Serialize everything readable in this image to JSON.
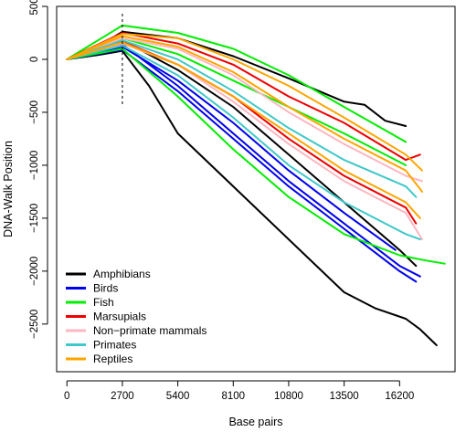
{
  "chart_data": {
    "type": "line",
    "xlabel": "Base pairs",
    "ylabel": "DNA-Walk Position",
    "xlim": [
      -500,
      18900
    ],
    "ylim": [
      -2950,
      500
    ],
    "x_ticks": [
      0,
      2700,
      5400,
      8100,
      10800,
      13500,
      16200
    ],
    "y_ticks": [
      500,
      0,
      -500,
      -1000,
      -1500,
      -2000,
      -2500
    ],
    "x_tick_labels": [
      "0",
      "2700",
      "5400",
      "8100",
      "10800",
      "13500",
      "16200"
    ],
    "y_tick_labels": [
      "500",
      "0",
      "−500",
      "−1000",
      "−1500",
      "−2000",
      "−2500"
    ],
    "vertical_marker_x": 2700,
    "grid": false,
    "legend_position": "bottom-left",
    "legend": [
      {
        "name": "Amphibians",
        "color": "#000000"
      },
      {
        "name": "Birds",
        "color": "#0000ee"
      },
      {
        "name": "Fish",
        "color": "#00ee00"
      },
      {
        "name": "Marsupials",
        "color": "#ee0000"
      },
      {
        "name": "Non−primate mammals",
        "color": "#ffb6c1"
      },
      {
        "name": "Primates",
        "color": "#40c8c8"
      },
      {
        "name": "Reptiles",
        "color": "#ffa500"
      }
    ],
    "series": [
      {
        "group": "Amphibians",
        "color": "#000000",
        "x": [
          0,
          1500,
          2700,
          5400,
          8100,
          10800,
          13500,
          14500,
          15500,
          16500
        ],
        "y": [
          0,
          120,
          260,
          200,
          30,
          -180,
          -400,
          -430,
          -580,
          -630
        ]
      },
      {
        "group": "Amphibians",
        "color": "#000000",
        "x": [
          0,
          1500,
          2700,
          4000,
          5400,
          8100,
          10800,
          13500,
          15000,
          16500,
          17200,
          18000
        ],
        "y": [
          0,
          40,
          80,
          -250,
          -700,
          -1200,
          -1700,
          -2200,
          -2350,
          -2450,
          -2550,
          -2700
        ]
      },
      {
        "group": "Amphibians",
        "color": "#000000",
        "x": [
          0,
          2700,
          5400,
          8100,
          10800,
          13500,
          16200,
          17000
        ],
        "y": [
          0,
          180,
          -100,
          -450,
          -900,
          -1350,
          -1800,
          -1950
        ]
      },
      {
        "group": "Birds",
        "color": "#0000ee",
        "x": [
          0,
          2700,
          5400,
          8100,
          10800,
          13500,
          16200,
          17200
        ],
        "y": [
          0,
          140,
          -250,
          -700,
          -1150,
          -1550,
          -1950,
          -2050
        ]
      },
      {
        "group": "Birds",
        "color": "#0000ee",
        "x": [
          0,
          2700,
          5400,
          8100,
          10800,
          13500,
          16200,
          17000
        ],
        "y": [
          0,
          90,
          -300,
          -750,
          -1200,
          -1600,
          -2000,
          -2100
        ]
      },
      {
        "group": "Birds",
        "color": "#0000ee",
        "x": [
          0,
          2700,
          5400,
          8100,
          10800,
          13500,
          16000
        ],
        "y": [
          0,
          120,
          -200,
          -600,
          -1050,
          -1450,
          -1800
        ]
      },
      {
        "group": "Fish",
        "color": "#00ee00",
        "x": [
          0,
          2700,
          5400,
          8100,
          10800,
          13500,
          16500
        ],
        "y": [
          0,
          320,
          250,
          100,
          -150,
          -450,
          -780
        ]
      },
      {
        "group": "Fish",
        "color": "#00ee00",
        "x": [
          0,
          2700,
          5400,
          8100,
          10800,
          13500,
          16200,
          17500,
          18400
        ],
        "y": [
          0,
          100,
          -350,
          -850,
          -1300,
          -1650,
          -1850,
          -1900,
          -1930
        ]
      },
      {
        "group": "Fish",
        "color": "#00ee00",
        "x": [
          0,
          2700,
          5400,
          8100,
          10800,
          13500,
          16500
        ],
        "y": [
          0,
          200,
          50,
          -200,
          -450,
          -700,
          -1000
        ]
      },
      {
        "group": "Marsupials",
        "color": "#ee0000",
        "x": [
          0,
          2700,
          5400,
          8100,
          10800,
          13500,
          16500,
          17200
        ],
        "y": [
          0,
          250,
          150,
          -50,
          -350,
          -600,
          -950,
          -900
        ]
      },
      {
        "group": "Marsupials",
        "color": "#ee0000",
        "x": [
          0,
          2700,
          5400,
          8100,
          10800,
          13500,
          16500,
          17000
        ],
        "y": [
          0,
          170,
          -50,
          -350,
          -750,
          -1100,
          -1400,
          -1550
        ]
      },
      {
        "group": "Non−primate mammals",
        "color": "#ffb6c1",
        "x": [
          0,
          2700,
          5400,
          8100,
          10800,
          13500,
          16500,
          17300
        ],
        "y": [
          0,
          200,
          100,
          -150,
          -500,
          -800,
          -1100,
          -1150
        ]
      },
      {
        "group": "Non−primate mammals",
        "color": "#ffb6c1",
        "x": [
          0,
          2700,
          5400,
          8100,
          10800,
          13500,
          16500,
          17300
        ],
        "y": [
          0,
          150,
          -50,
          -400,
          -800,
          -1150,
          -1450,
          -1700
        ]
      },
      {
        "group": "Primates",
        "color": "#40c8c8",
        "x": [
          0,
          2700,
          5400,
          8100,
          10800,
          13500,
          16500,
          17200
        ],
        "y": [
          0,
          130,
          -150,
          -550,
          -1000,
          -1350,
          -1650,
          -1700
        ]
      },
      {
        "group": "Primates",
        "color": "#40c8c8",
        "x": [
          0,
          2700,
          5400,
          8100,
          10800,
          13500,
          16500,
          17000
        ],
        "y": [
          0,
          180,
          0,
          -300,
          -650,
          -950,
          -1200,
          -1300
        ]
      },
      {
        "group": "Reptiles",
        "color": "#ffa500",
        "x": [
          0,
          2700,
          5400,
          8100,
          10800,
          13500,
          16500,
          17300
        ],
        "y": [
          0,
          220,
          120,
          -120,
          -450,
          -750,
          -1050,
          -1250
        ]
      },
      {
        "group": "Reptiles",
        "color": "#ffa500",
        "x": [
          0,
          2700,
          5400,
          8100,
          10800,
          13500,
          16500,
          17200
        ],
        "y": [
          0,
          160,
          -50,
          -350,
          -700,
          -1050,
          -1350,
          -1500
        ]
      },
      {
        "group": "Reptiles",
        "color": "#ffa500",
        "x": [
          0,
          2700,
          5400,
          8100,
          10800,
          13500,
          16500,
          17300
        ],
        "y": [
          0,
          240,
          200,
          0,
          -250,
          -550,
          -900,
          -1050
        ]
      }
    ]
  }
}
